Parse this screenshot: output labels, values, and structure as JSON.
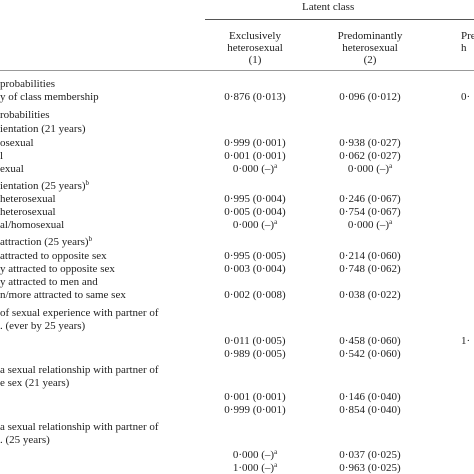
{
  "header": {
    "spanner": "Latent class",
    "columns": [
      [
        "Exclusively",
        "heterosexual",
        "(1)"
      ],
      [
        "Predominantly",
        "heterosexual",
        "(2)"
      ],
      [
        "Pre",
        "h"
      ]
    ]
  },
  "rows": [
    {
      "label": "probabilities"
    },
    {
      "label": "y of class membership",
      "cells": [
        {
          "text": "0·876 (0·013)"
        },
        {
          "text": "0·096 (0·012)"
        },
        {
          "text": "0·"
        }
      ]
    },
    {
      "label": "robabilities"
    },
    {
      "label": "ientation (21 years)"
    },
    {
      "label": "osexual",
      "cells": [
        {
          "text": "0·999 (0·001)"
        },
        {
          "text": "0·938 (0·027)"
        }
      ]
    },
    {
      "label": "l",
      "cells": [
        {
          "text": "0·001 (0·001)"
        },
        {
          "text": "0·062 (0·027)"
        }
      ]
    },
    {
      "label": "exual",
      "cells": [
        {
          "text": "0·000 (–)",
          "sup": "a"
        },
        {
          "text": "0·000 (–)",
          "sup": "a"
        }
      ]
    },
    {
      "label": "ientation (25 years)",
      "label_sup": "b"
    },
    {
      "label": "heterosexual",
      "cells": [
        {
          "text": "0·995 (0·004)"
        },
        {
          "text": "0·246 (0·067)"
        }
      ]
    },
    {
      "label": "heterosexual",
      "cells": [
        {
          "text": "0·005 (0·004)"
        },
        {
          "text": "0·754 (0·067)"
        }
      ]
    },
    {
      "label": "al/homosexual",
      "cells": [
        {
          "text": "0·000 (–)",
          "sup": "a"
        },
        {
          "text": "0·000 (–)",
          "sup": "a"
        }
      ]
    },
    {
      "label": "attraction (25 years)",
      "label_sup": "b"
    },
    {
      "label": "attracted to opposite sex",
      "cells": [
        {
          "text": "0·995 (0·005)"
        },
        {
          "text": "0·214 (0·060)"
        }
      ]
    },
    {
      "label": "y attracted to opposite sex",
      "cells": [
        {
          "text": "0·003 (0·004)"
        },
        {
          "text": "0·748 (0·062)"
        }
      ]
    },
    {
      "label": "y attracted to men and"
    },
    {
      "label": "n/more attracted to same sex",
      "cells": [
        {
          "text": "0·002 (0·008)"
        },
        {
          "text": "0·038 (0·022)"
        }
      ]
    },
    {
      "label": "of sexual experience with partner of"
    },
    {
      "label": ". (ever by 25 years)"
    },
    {
      "cells": [
        {
          "text": "0·011 (0·005)"
        },
        {
          "text": "0·458 (0·060)"
        },
        {
          "text": "1·"
        }
      ]
    },
    {
      "cells": [
        {
          "text": "0·989 (0·005)"
        },
        {
          "text": "0·542 (0·060)"
        }
      ]
    },
    {
      "label": "a sexual relationship with partner of"
    },
    {
      "label": "e sex (21 years)"
    },
    {
      "cells": [
        {
          "text": "0·001 (0·001)"
        },
        {
          "text": "0·146 (0·040)"
        }
      ]
    },
    {
      "cells": [
        {
          "text": "0·999 (0·001)"
        },
        {
          "text": "0·854 (0·040)"
        }
      ]
    },
    {
      "label": "a sexual relationship with partner of"
    },
    {
      "label": ". (25 years)"
    },
    {
      "cells": [
        {
          "text": "0·000 (–)",
          "sup": "a"
        },
        {
          "text": "0·037 (0·025)"
        }
      ]
    },
    {
      "cells": [
        {
          "text": "1·000 (–)",
          "sup": "a"
        },
        {
          "text": "0·963 (0·025)"
        }
      ]
    }
  ]
}
